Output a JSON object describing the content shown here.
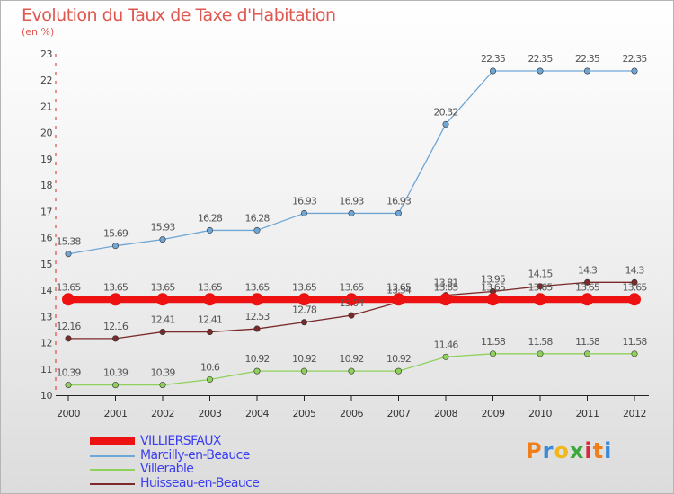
{
  "header": {
    "title": "Evolution du Taux de Taxe d'Habitation",
    "subtitle": "(en %)"
  },
  "chart_data": {
    "type": "line",
    "title": "Evolution du Taux de Taxe d'Habitation",
    "ylabel": "(en %)",
    "xlabel": "",
    "ylim": [
      10,
      23
    ],
    "yticks": [
      10,
      11,
      12,
      13,
      14,
      15,
      16,
      17,
      18,
      19,
      20,
      21,
      22,
      23
    ],
    "categories": [
      "2000",
      "2001",
      "2002",
      "2003",
      "2004",
      "2005",
      "2006",
      "2007",
      "2008",
      "2009",
      "2010",
      "2011",
      "2012"
    ],
    "grid": false,
    "legend_position": "bottom-left",
    "series": [
      {
        "name": "VILLIERSFAUX",
        "color": "#ee1111",
        "values": [
          13.65,
          13.65,
          13.65,
          13.65,
          13.65,
          13.65,
          13.65,
          13.65,
          13.65,
          13.65,
          13.65,
          13.65,
          13.65
        ],
        "labels": [
          "13.65",
          "13.65",
          "13.65",
          "13.65",
          "13.65",
          "13.65",
          "13.65",
          "13.65",
          "13.65",
          "13.65",
          "13.65",
          "13.65",
          "13.65"
        ]
      },
      {
        "name": "Marcilly-en-Beauce",
        "color": "#6ea6d6",
        "values": [
          15.38,
          15.69,
          15.93,
          16.28,
          16.28,
          16.93,
          16.93,
          16.93,
          20.32,
          22.35,
          22.35,
          22.35,
          22.35
        ],
        "labels": [
          "15.38",
          "15.69",
          "15.93",
          "16.28",
          "16.28",
          "16.93",
          "16.93",
          "16.93",
          "20.32",
          "22.35",
          "22.35",
          "22.35",
          "22.35"
        ]
      },
      {
        "name": "Villerable",
        "color": "#8fd15a",
        "values": [
          10.39,
          10.39,
          10.39,
          10.6,
          10.92,
          10.92,
          10.92,
          10.92,
          11.46,
          11.58,
          11.58,
          11.58,
          11.58
        ],
        "labels": [
          "10.39",
          "10.39",
          "10.39",
          "10.6",
          "10.92",
          "10.92",
          "10.92",
          "10.92",
          "11.46",
          "11.58",
          "11.58",
          "11.58",
          "11.58"
        ]
      },
      {
        "name": "Huisseau-en-Beauce",
        "color": "#7a2a2a",
        "values": [
          12.16,
          12.16,
          12.41,
          12.41,
          12.53,
          12.78,
          13.04,
          13.54,
          13.81,
          13.95,
          14.15,
          14.3,
          14.3
        ],
        "labels": [
          "12.16",
          "12.16",
          "12.41",
          "12.41",
          "12.53",
          "12.78",
          "13.04",
          "13.54",
          "13.81",
          "13.95",
          "14.15",
          "14.3",
          "14.3"
        ]
      }
    ]
  },
  "logo": {
    "text": "Proxiti",
    "letters": [
      "P",
      "r",
      "o",
      "x",
      "i",
      "t",
      "i"
    ],
    "colors": [
      "#f07f1a",
      "#3a8ad8",
      "#f0b81a",
      "#3aa83a",
      "#d8283a",
      "#f07f1a",
      "#3a8ad8"
    ]
  }
}
